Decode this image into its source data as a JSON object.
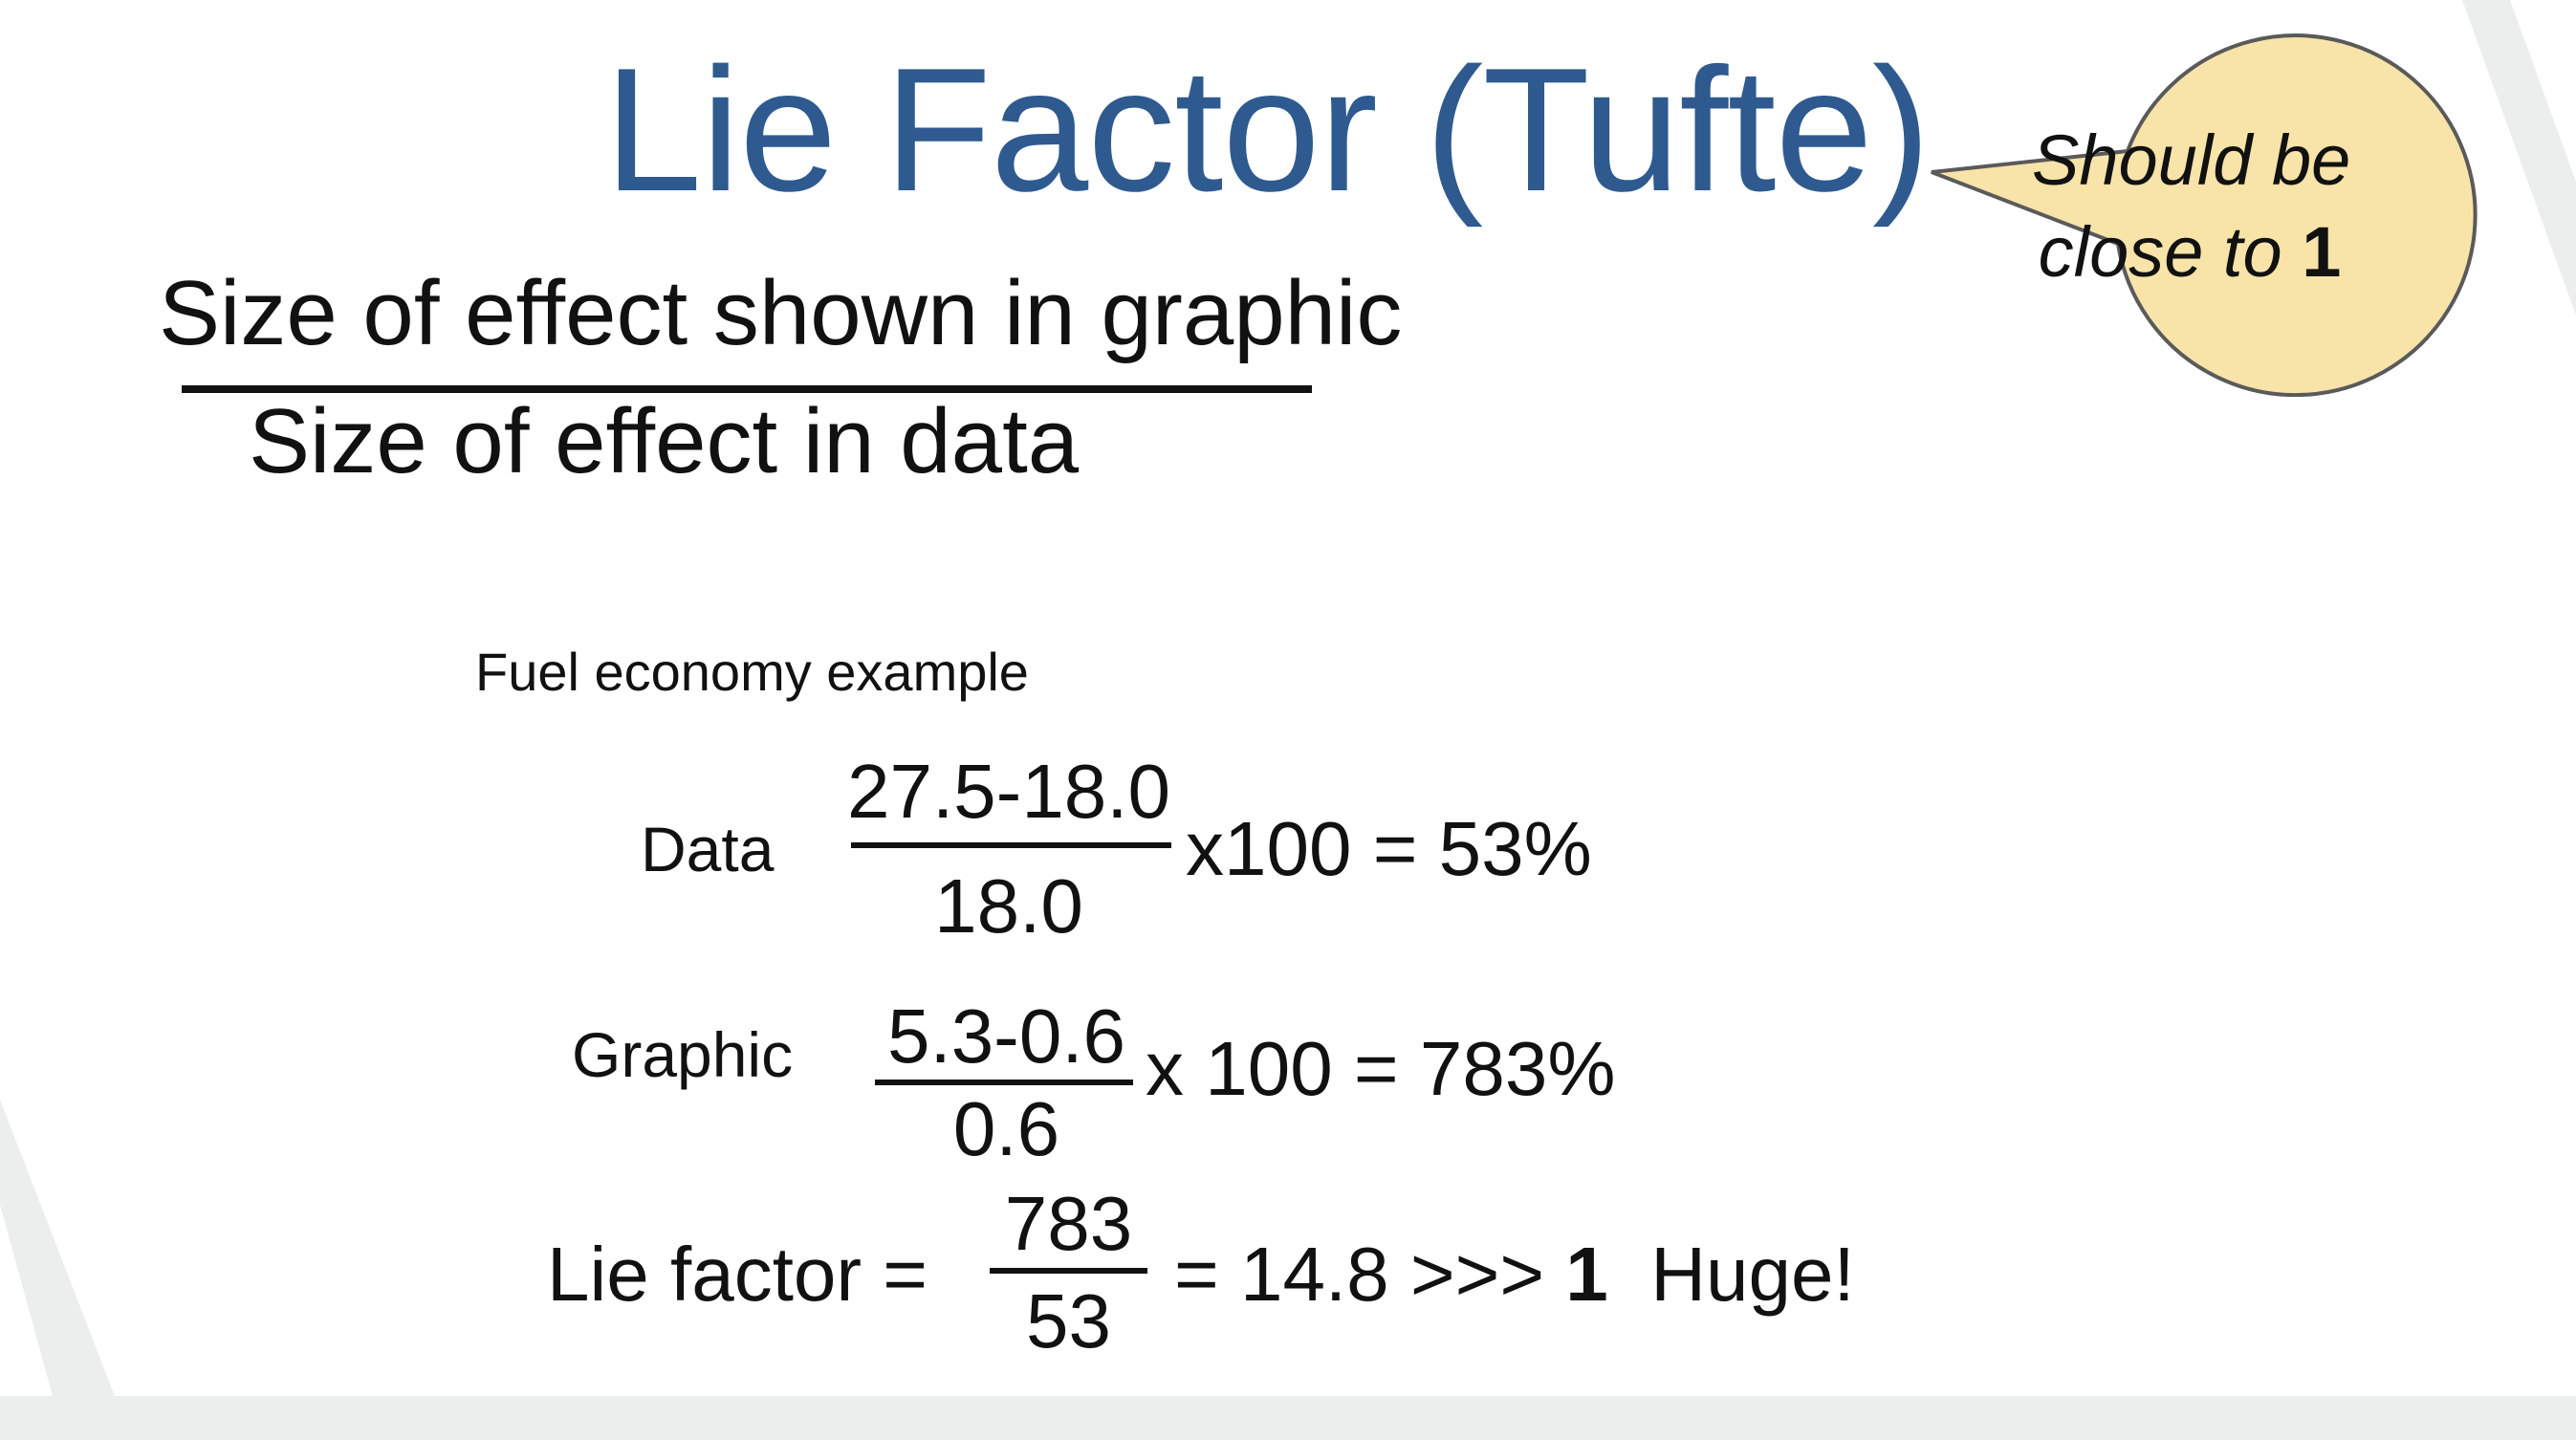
{
  "title": "Lie Factor (Tufte)",
  "bubble": {
    "line1": "Should be",
    "line2_prefix": "close to",
    "line2_bold": "1",
    "fill_color": "#f8e3a9"
  },
  "definition": {
    "numerator": "Size of effect shown in graphic",
    "denominator": "Size of effect in data"
  },
  "example": {
    "label": "Fuel economy example",
    "data_row": {
      "label": "Data",
      "numerator": "27.5-18.0",
      "denominator": "18.0",
      "result": "x100 = 53%"
    },
    "graphic_row": {
      "label": "Graphic",
      "numerator": "5.3-0.6",
      "denominator": "0.6",
      "result": "x 100 = 783%"
    },
    "lie_row": {
      "label": "Lie factor =",
      "numerator": "783",
      "denominator": "53",
      "result_prefix": "= 14.8 >>>",
      "result_bold": "1",
      "result_suffix": "Huge!"
    }
  },
  "colors": {
    "title": "#2e5a8f",
    "background_stripes": "#eceeed"
  }
}
